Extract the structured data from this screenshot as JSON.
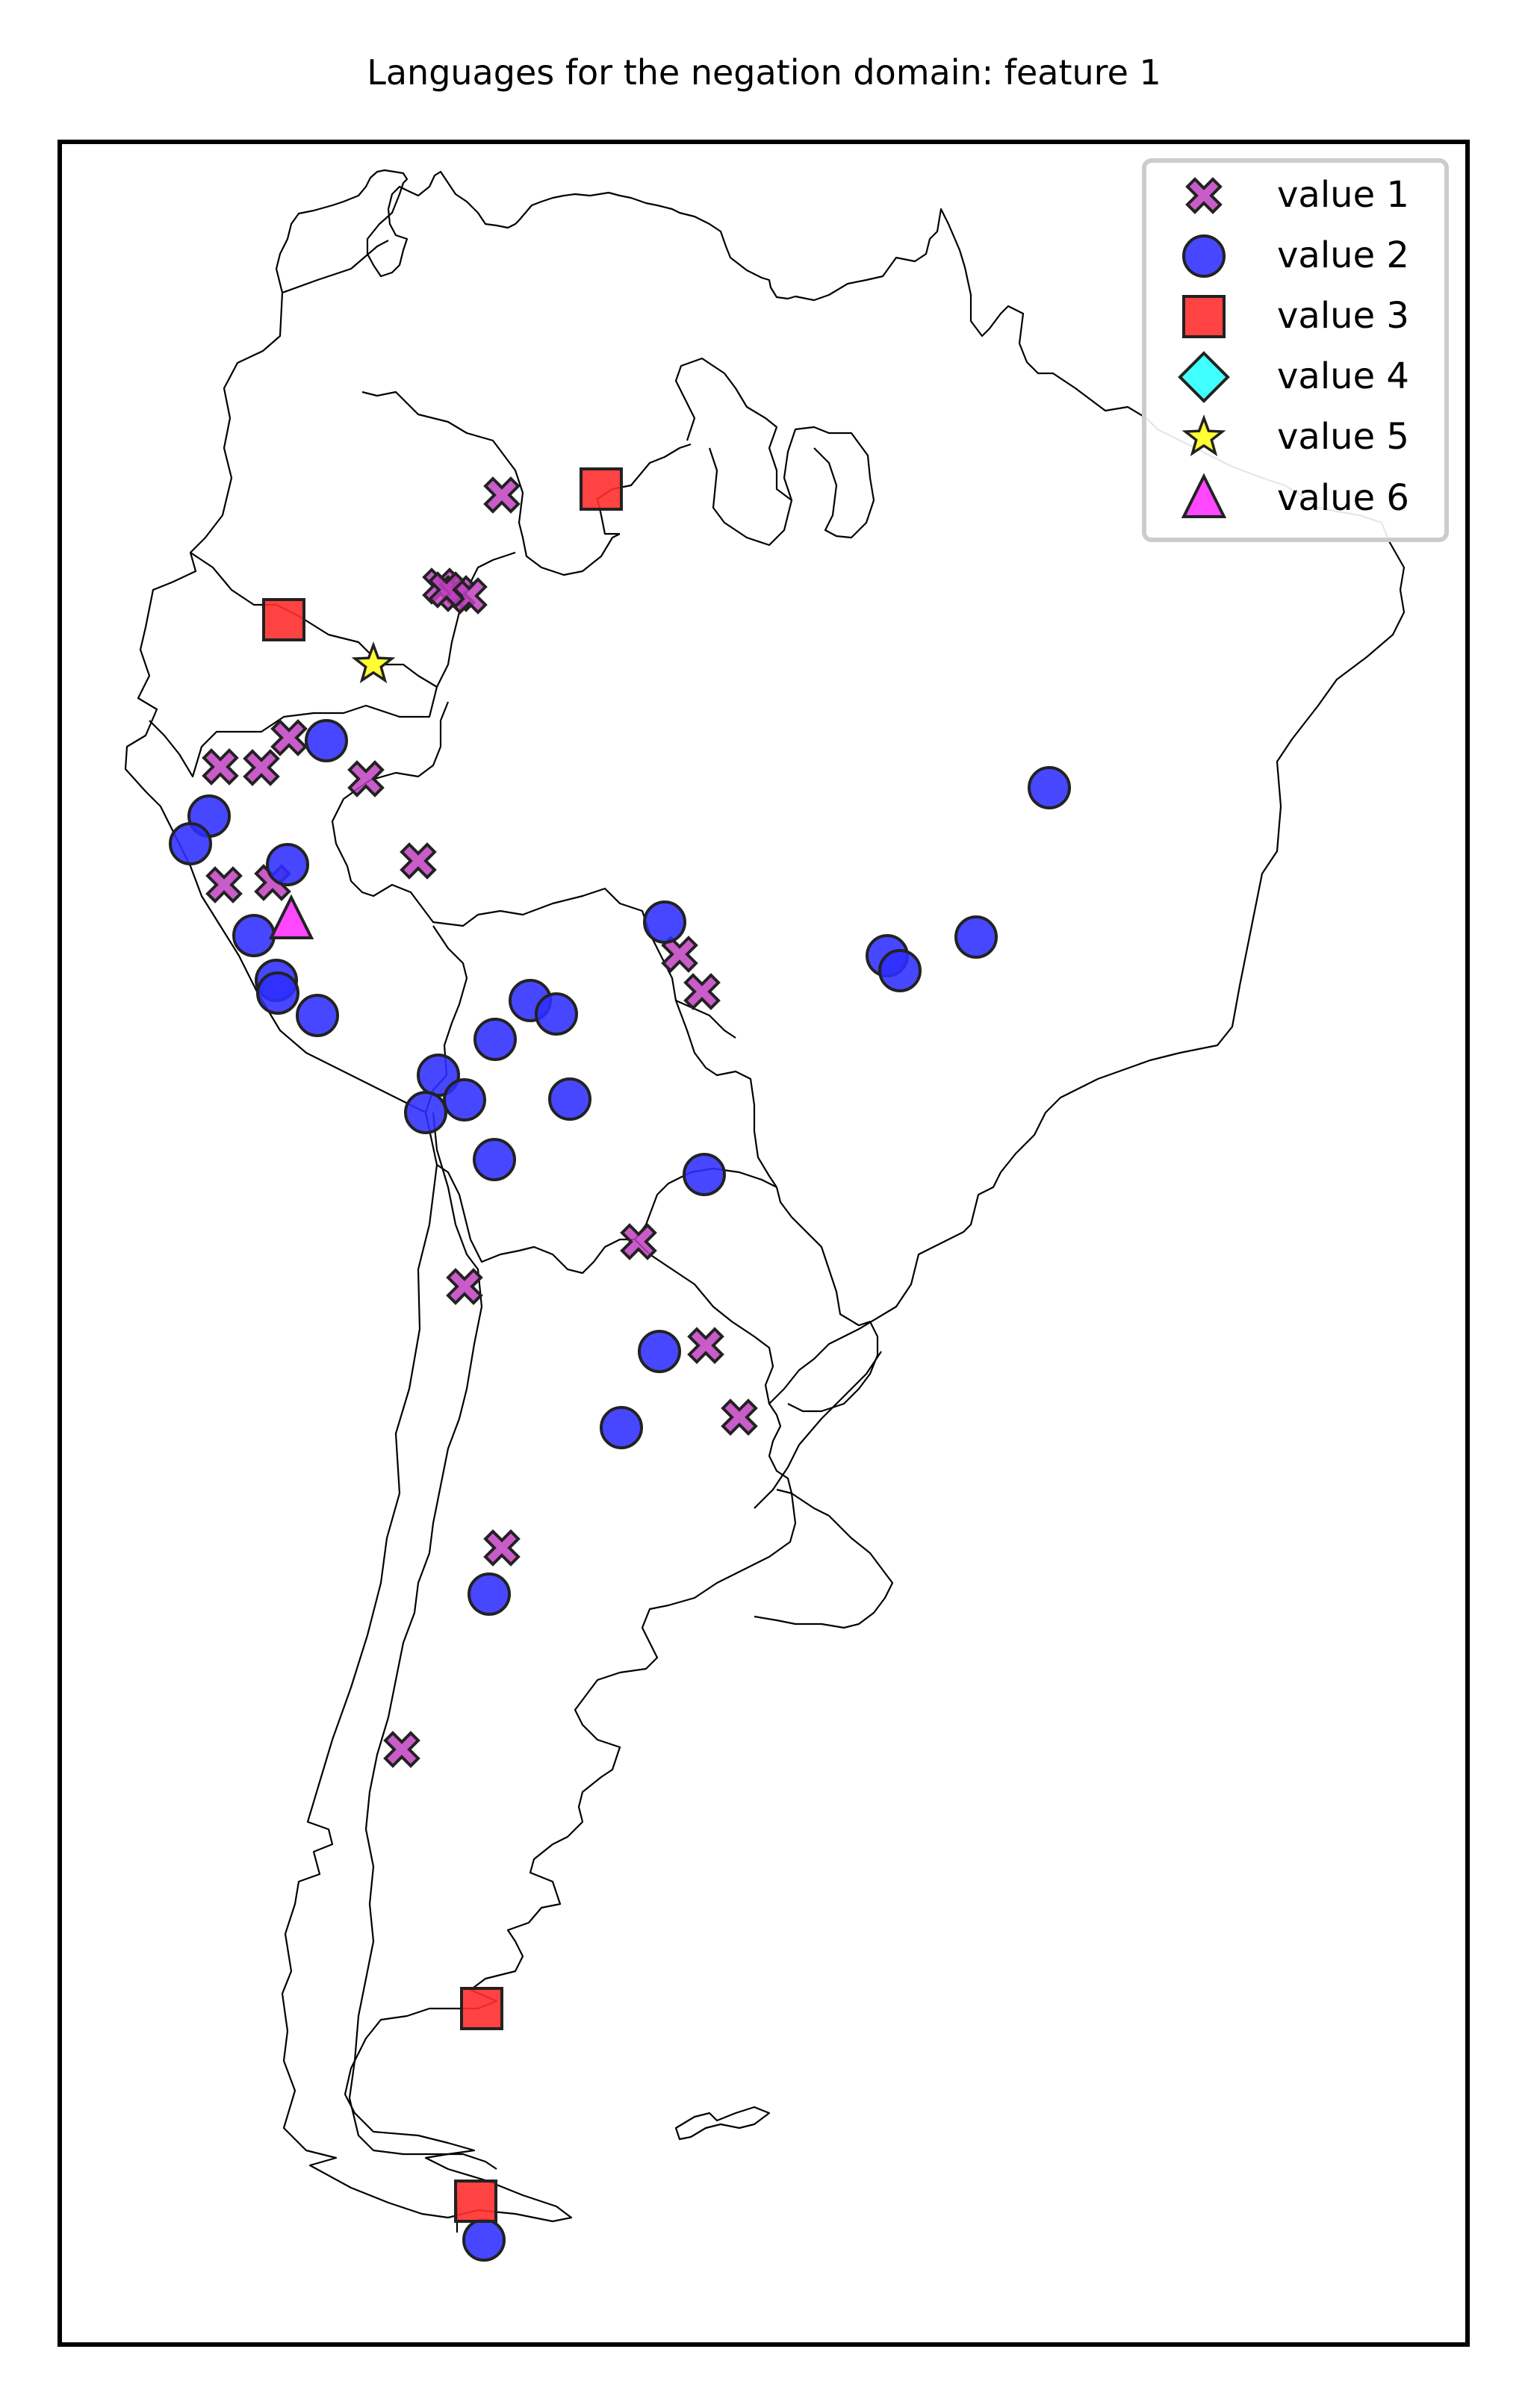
{
  "title": "Languages for the negation domain: feature 1",
  "legend": [
    {
      "label": "value 1",
      "marker": "x-marker-icon",
      "color": "#bf40bf"
    },
    {
      "label": "value 2",
      "marker": "circle-marker-icon",
      "color": "#4040ff"
    },
    {
      "label": "value 3",
      "marker": "square-marker-icon",
      "color": "#ff4040"
    },
    {
      "label": "value 4",
      "marker": "diamond-marker-icon",
      "color": "#40ffff"
    },
    {
      "label": "value 5",
      "marker": "star-marker-icon",
      "color": "#ffff40"
    },
    {
      "label": "value 6",
      "marker": "triangle-marker-icon",
      "color": "#ff40ff"
    }
  ]
}
